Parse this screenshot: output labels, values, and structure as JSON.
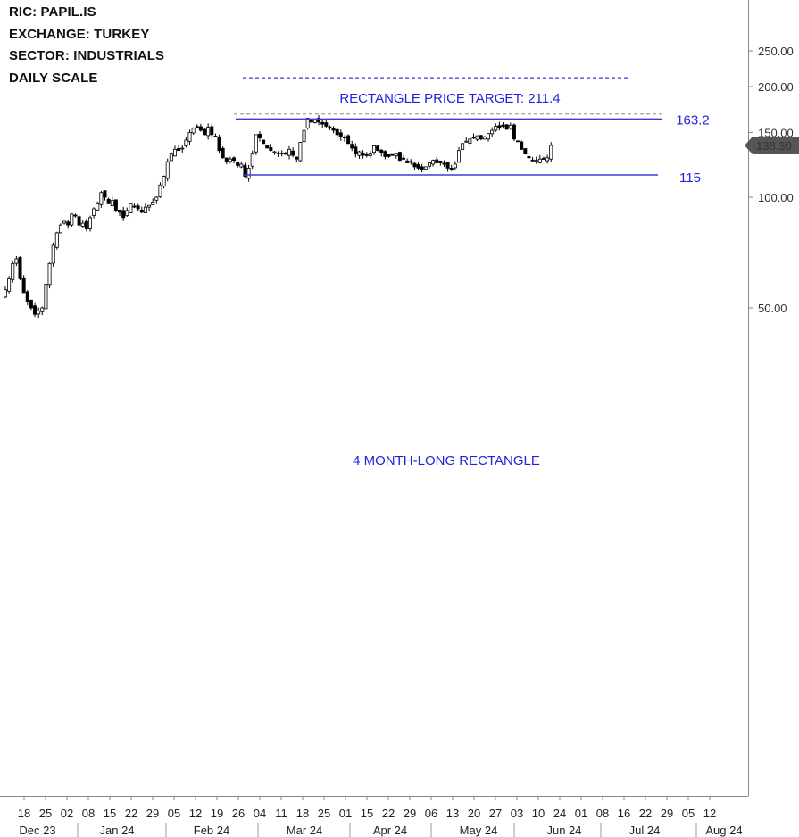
{
  "header": {
    "ric": "RIC:  PAPIL.IS",
    "exchange": "EXCHANGE:  TURKEY",
    "sector": "SECTOR: INDUSTRIALS",
    "scale": "DAILY SCALE"
  },
  "colors": {
    "candle": "#000000",
    "annotation": "#2222dd",
    "pattern_line": "#3b3bdd",
    "breakout_line": "#aaaaaa",
    "last_price_badge": "#555555",
    "axis": "#888888"
  },
  "chart_data": {
    "type": "candlestick",
    "y_scale": "log",
    "ylim": [
      40,
      290
    ],
    "y_ticks": [
      {
        "value": 250,
        "label": "250.00"
      },
      {
        "value": 200,
        "label": "200.00"
      },
      {
        "value": 150,
        "label": "150.00"
      },
      {
        "value": 100,
        "label": "100.00"
      },
      {
        "value": 50,
        "label": "50.00"
      }
    ],
    "last_price": {
      "value": 138.3,
      "label": "138.30"
    },
    "x_day_labels": [
      "18",
      "25",
      "02",
      "08",
      "15",
      "22",
      "29",
      "05",
      "12",
      "19",
      "26",
      "04",
      "11",
      "18",
      "25",
      "01",
      "15",
      "22",
      "29",
      "06",
      "13",
      "20",
      "27",
      "03",
      "10",
      "24",
      "01",
      "08",
      "16",
      "22",
      "29",
      "05",
      "12"
    ],
    "x_month_labels": [
      "Dec 23",
      "Jan 24",
      "Feb 24",
      "Mar 24",
      "Apr 24",
      "May 24",
      "Jun 24",
      "Jul 24",
      "Aug 24"
    ],
    "annotations": {
      "price_target_label": "RECTANGLE PRICE TARGET: 211.4",
      "price_target": 211.4,
      "resistance_label": "163.2",
      "resistance": 163.2,
      "support_label": "115",
      "support": 115,
      "breakout_level": 168.5,
      "pattern_label": "4 MONTH-LONG RECTANGLE"
    },
    "closes": [
      56,
      60,
      66,
      68,
      60,
      55,
      52,
      50,
      48,
      49,
      50,
      58,
      66,
      74,
      80,
      84,
      86,
      84,
      90,
      89,
      84,
      85,
      82,
      88,
      93,
      96,
      103,
      100,
      96,
      98,
      92,
      91,
      88,
      92,
      96,
      94,
      93,
      91,
      94,
      95,
      97,
      100,
      108,
      114,
      125,
      131,
      135,
      134,
      136,
      143,
      150,
      154,
      155,
      152,
      148,
      155,
      148,
      146,
      134,
      128,
      125,
      127,
      126,
      122,
      123,
      114,
      120,
      131,
      148,
      145,
      140,
      136,
      134,
      133,
      132,
      132,
      131,
      135,
      130,
      127,
      141,
      152,
      164,
      160,
      162,
      160,
      158,
      156,
      154,
      152,
      148,
      146,
      145,
      140,
      136,
      131,
      133,
      130,
      130,
      131,
      138,
      134,
      132,
      129,
      129,
      130,
      131,
      126,
      127,
      124,
      125,
      121,
      120,
      119,
      121,
      124,
      126,
      124,
      124,
      123,
      120,
      119,
      123,
      134,
      140,
      142,
      144,
      145,
      147,
      144,
      146,
      149,
      152,
      156,
      155,
      156,
      153,
      157,
      144,
      142,
      135,
      131,
      128,
      126,
      126,
      127,
      127,
      128,
      138.3
    ]
  }
}
